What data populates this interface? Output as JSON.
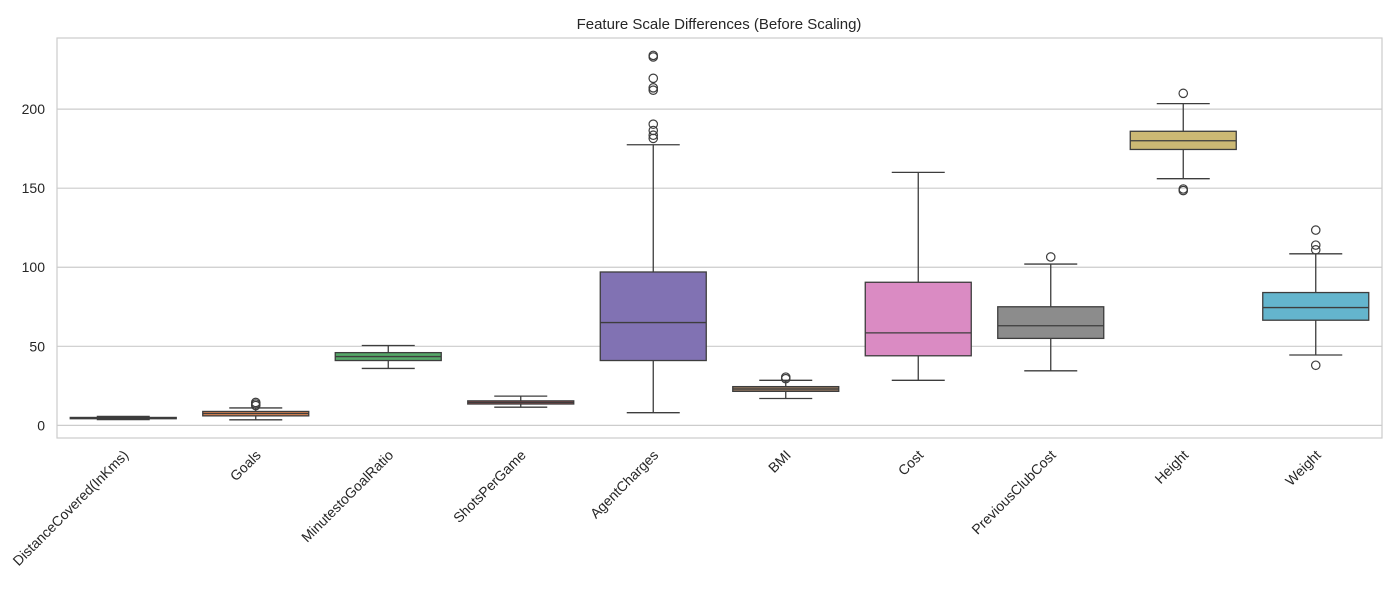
{
  "chart_data": {
    "type": "boxplot",
    "title": "Feature Scale Differences (Before Scaling)",
    "xlabel": "",
    "ylabel": "",
    "ylim": [
      -8,
      245
    ],
    "yticks": [
      0,
      50,
      100,
      150,
      200
    ],
    "grid": true,
    "legend": "none",
    "series": [
      {
        "name": "DistanceCovered(InKms)",
        "color": "#4c72b0",
        "whislo": 3.6,
        "q1": 4.2,
        "med": 4.6,
        "q3": 5.0,
        "whishi": 5.7,
        "fliers": []
      },
      {
        "name": "Goals",
        "color": "#dd8452",
        "whislo": 3.5,
        "q1": 6.0,
        "med": 7.5,
        "q3": 8.8,
        "whishi": 11.0,
        "fliers": [
          12.5,
          13.5,
          14.5
        ]
      },
      {
        "name": "MinutestoGoalRatio",
        "color": "#55a868",
        "whislo": 36.0,
        "q1": 41.0,
        "med": 43.5,
        "q3": 46.0,
        "whishi": 50.5,
        "fliers": []
      },
      {
        "name": "ShotsPerGame",
        "color": "#c44e52",
        "whislo": 11.5,
        "q1": 13.5,
        "med": 14.5,
        "q3": 15.5,
        "whishi": 18.5,
        "fliers": []
      },
      {
        "name": "AgentCharges",
        "color": "#8172b3",
        "whislo": 8.0,
        "q1": 41.0,
        "med": 65.0,
        "q3": 97.0,
        "whishi": 177.5,
        "fliers": [
          181.5,
          183.5,
          186.5,
          190.5,
          212.0,
          213.5,
          219.5,
          233.0,
          234.0
        ]
      },
      {
        "name": "BMI",
        "color": "#937860",
        "whislo": 17.0,
        "q1": 21.5,
        "med": 23.0,
        "q3": 24.5,
        "whishi": 28.5,
        "fliers": [
          29.5,
          30.5
        ]
      },
      {
        "name": "Cost",
        "color": "#da8bc3",
        "whislo": 28.5,
        "q1": 44.0,
        "med": 58.5,
        "q3": 90.5,
        "whishi": 160.0,
        "fliers": []
      },
      {
        "name": "PreviousClubCost",
        "color": "#8c8c8c",
        "whislo": 34.5,
        "q1": 55.0,
        "med": 63.0,
        "q3": 75.0,
        "whishi": 102.0,
        "fliers": [
          106.5
        ]
      },
      {
        "name": "Height",
        "color": "#ccb974",
        "whislo": 156.0,
        "q1": 174.5,
        "med": 180.0,
        "q3": 186.0,
        "whishi": 203.5,
        "fliers": [
          148.5,
          149.5,
          210.0
        ]
      },
      {
        "name": "Weight",
        "color": "#64b5cd",
        "whislo": 44.5,
        "q1": 66.5,
        "med": 74.5,
        "q3": 84.0,
        "whishi": 108.5,
        "fliers": [
          38.0,
          111.0,
          114.0,
          123.5
        ]
      }
    ]
  }
}
